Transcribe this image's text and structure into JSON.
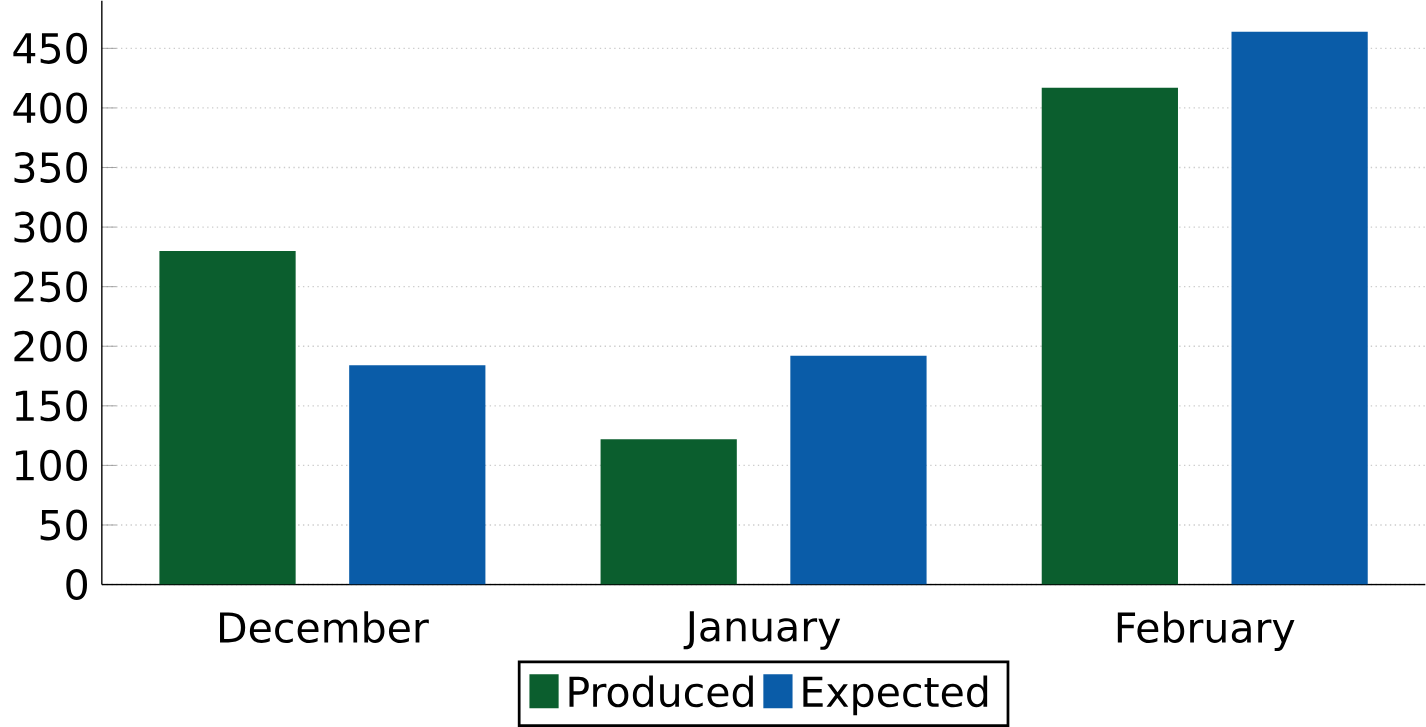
{
  "chart_data": {
    "type": "bar",
    "categories": [
      "December",
      "January",
      "February"
    ],
    "series": [
      {
        "name": "Produced",
        "color": "#0b5e2e",
        "values": [
          280,
          122,
          417
        ]
      },
      {
        "name": "Expected",
        "color": "#0a5ca8",
        "values": [
          184,
          192,
          464
        ]
      }
    ],
    "ylim": [
      0,
      490
    ],
    "yticks": [
      0,
      50,
      100,
      150,
      200,
      250,
      300,
      350,
      400,
      450
    ],
    "grid": "y",
    "legend": "bottom"
  }
}
